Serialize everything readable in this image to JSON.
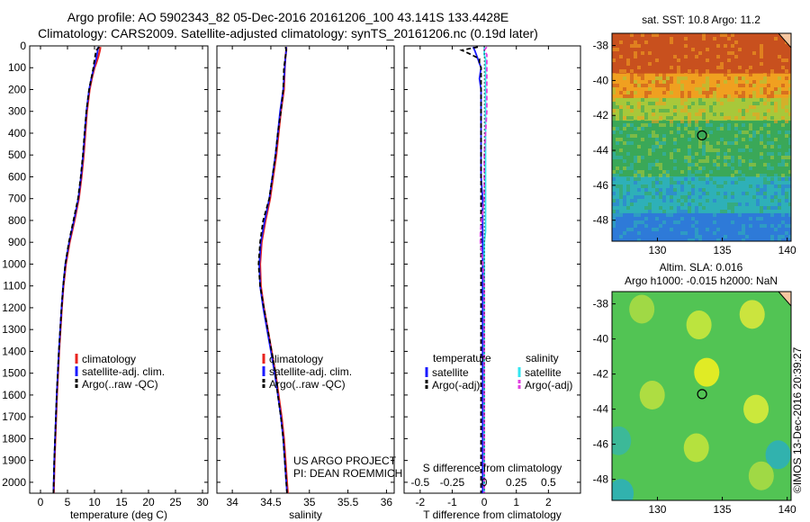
{
  "titles": {
    "line1": "Argo profile: AO 5902343_82 05-Dec-2016 20161206_100 43.141S 133.4428E",
    "line2": "Climatology: CARS2009. Satellite-adjusted climatology: synTS_20161206.nc (0.19d later)"
  },
  "stamp": "©IMOS 13-Dec-2016 20:39:27",
  "credit": {
    "line1": "US ARGO PROJECT",
    "line2": "PI: DEAN ROEMMICH"
  },
  "colors": {
    "climatology": "#e8231e",
    "satellite": "#1a1aff",
    "argo": "#000000",
    "sal_satellite": "#33e6f0",
    "sal_argo": "#e040e0"
  },
  "chart_data": [
    {
      "type": "line",
      "panel": "temperature",
      "xlabel": "temperature (deg C)",
      "xlim": [
        -2,
        31
      ],
      "ylim": [
        2050,
        0
      ],
      "y_reversed": true,
      "xticks": [
        0,
        5,
        10,
        15,
        20,
        25,
        30
      ],
      "yticks": [
        0,
        100,
        200,
        300,
        400,
        500,
        600,
        700,
        800,
        900,
        1000,
        1100,
        1200,
        1300,
        1400,
        1500,
        1600,
        1700,
        1800,
        1900,
        2000
      ],
      "legend_position": "lower-center",
      "legend": [
        "climatology",
        "satellite-adj. clim.",
        "Argo(..raw -QC)"
      ],
      "y": [
        5,
        20,
        50,
        80,
        100,
        150,
        200,
        300,
        400,
        500,
        600,
        700,
        800,
        900,
        1000,
        1100,
        1200,
        1300,
        1400,
        1500,
        1600,
        1700,
        1800,
        1900,
        2000,
        2050
      ],
      "series": [
        {
          "name": "climatology",
          "values": [
            11.1,
            11.0,
            10.7,
            10.3,
            10.0,
            9.5,
            9.1,
            8.6,
            8.3,
            8.0,
            7.6,
            7.1,
            6.3,
            5.4,
            4.7,
            4.25,
            3.95,
            3.7,
            3.45,
            3.25,
            3.05,
            2.9,
            2.75,
            2.6,
            2.5,
            2.45
          ]
        },
        {
          "name": "satellite-adj. clim.",
          "values": [
            10.7,
            10.6,
            10.4,
            10.1,
            9.9,
            9.4,
            9.0,
            8.5,
            8.2,
            7.9,
            7.5,
            7.0,
            6.2,
            5.3,
            4.6,
            4.2,
            3.9,
            3.65,
            3.4,
            3.2,
            3.0,
            2.85,
            2.7,
            2.55,
            2.45,
            2.4
          ]
        },
        {
          "name": "Argo(..raw -QC)",
          "values": [
            10.9,
            10.3,
            10.1,
            9.9,
            9.8,
            9.4,
            9.0,
            8.5,
            8.15,
            7.85,
            7.45,
            6.95,
            6.1,
            5.25,
            4.6,
            4.2,
            3.9,
            3.65,
            3.4,
            3.2,
            3.0,
            2.85,
            2.7,
            2.55,
            2.45,
            2.4
          ]
        }
      ]
    },
    {
      "type": "line",
      "panel": "salinity",
      "xlabel": "salinity",
      "xlim": [
        33.8,
        36.1
      ],
      "ylim": [
        2050,
        0
      ],
      "y_reversed": true,
      "xticks": [
        34,
        34.5,
        35,
        35.5,
        36
      ],
      "legend_position": "lower-center",
      "legend": [
        "climatology",
        "satellite-adj. clim.",
        "Argo(..raw -QC)"
      ],
      "y": [
        5,
        20,
        50,
        100,
        200,
        300,
        400,
        500,
        600,
        700,
        800,
        900,
        1000,
        1100,
        1200,
        1300,
        1400,
        1500,
        1600,
        1700,
        1800,
        1900,
        2000,
        2050
      ],
      "series": [
        {
          "name": "climatology",
          "values": [
            34.7,
            34.7,
            34.69,
            34.68,
            34.67,
            34.63,
            34.6,
            34.57,
            34.53,
            34.49,
            34.43,
            34.38,
            34.36,
            34.37,
            34.41,
            34.46,
            34.51,
            34.56,
            34.6,
            34.64,
            34.67,
            34.69,
            34.71,
            34.72
          ]
        },
        {
          "name": "satellite-adj. clim.",
          "values": [
            34.7,
            34.7,
            34.69,
            34.68,
            34.66,
            34.62,
            34.59,
            34.56,
            34.52,
            34.48,
            34.42,
            34.37,
            34.35,
            34.36,
            34.4,
            34.45,
            34.5,
            34.55,
            34.59,
            34.63,
            34.66,
            34.68,
            34.7,
            34.71
          ]
        },
        {
          "name": "Argo(..raw -QC)",
          "values": [
            34.69,
            34.7,
            34.69,
            34.67,
            34.66,
            34.63,
            34.59,
            34.56,
            34.52,
            34.48,
            34.4,
            34.36,
            34.34,
            34.36,
            34.41,
            34.46,
            34.51,
            34.56,
            34.59,
            34.63,
            34.66,
            34.68,
            34.7,
            34.71
          ]
        }
      ]
    },
    {
      "type": "line",
      "panel": "difference",
      "xlabel": "T difference from climatology",
      "top_label": "S difference from climatology",
      "xlim": [
        -2.5,
        3.0
      ],
      "ylim": [
        2050,
        0
      ],
      "y_reversed": true,
      "xticks": [
        -2,
        -1,
        0,
        1,
        2
      ],
      "top_ticks": [
        "-0.5",
        "-0.25",
        "0",
        "0.25",
        "0.5"
      ],
      "top_ticks_at_t": [
        -2,
        -1,
        0,
        1,
        2
      ],
      "legend_position": "lower-center",
      "legend_headers": [
        "temperature",
        "salinity"
      ],
      "legend": [
        "satellite",
        "Argo(-adj)",
        "satellite",
        "Argo(-adj)"
      ],
      "y": [
        5,
        20,
        40,
        60,
        80,
        100,
        150,
        200,
        300,
        400,
        500,
        600,
        700,
        800,
        850,
        900,
        950,
        1000,
        1100,
        1200,
        1300,
        1400,
        1500,
        1600,
        1700,
        1800,
        1900,
        2000,
        2050
      ],
      "series": [
        {
          "name": "satellite",
          "values": [
            -0.35,
            -0.3,
            -0.25,
            -0.2,
            -0.15,
            -0.1,
            -0.15,
            -0.1,
            -0.1,
            -0.1,
            -0.1,
            -0.1,
            -0.05,
            -0.05,
            -0.05,
            -0.05,
            -0.05,
            -0.05,
            -0.05,
            -0.05,
            -0.05,
            -0.05,
            -0.05,
            -0.05,
            -0.05,
            -0.05,
            -0.05,
            -0.05,
            -0.05
          ]
        },
        {
          "name": "Argo(-adj)",
          "values": [
            -0.2,
            -0.7,
            -0.4,
            -0.15,
            -0.15,
            -0.1,
            -0.1,
            -0.1,
            -0.1,
            -0.1,
            -0.1,
            -0.1,
            -0.1,
            -0.1,
            -0.1,
            -0.1,
            -0.1,
            -0.1,
            -0.1,
            -0.1,
            -0.1,
            -0.1,
            -0.1,
            -0.1,
            -0.1,
            -0.1,
            -0.1,
            -0.1,
            -0.1
          ]
        },
        {
          "name": "satellite",
          "values": [
            0.0,
            0.0,
            0.0,
            0.01,
            0.01,
            0.01,
            0.01,
            0.01,
            0.01,
            0.01,
            0.01,
            0.01,
            0.01,
            0.01,
            0.01,
            0.0,
            0.0,
            0.0,
            0.0,
            0.0,
            0.0,
            0.0,
            0.0,
            0.0,
            0.0,
            0.0,
            0.0,
            0.0,
            0.0
          ]
        },
        {
          "name": "Argo(-adj)",
          "values": [
            0.02,
            0.0,
            0.02,
            0.02,
            0.02,
            0.02,
            0.02,
            0.02,
            0.02,
            0.01,
            0.0,
            0.0,
            0.0,
            -0.02,
            -0.03,
            -0.03,
            -0.02,
            -0.01,
            0.0,
            0.0,
            0.0,
            0.0,
            0.0,
            0.0,
            0.0,
            0.0,
            0.0,
            0.0,
            0.0
          ]
        }
      ]
    },
    {
      "type": "heatmap",
      "panel": "sst-map",
      "title": "sat. SST: 10.8 Argo: 11.2",
      "xlim": [
        126.5,
        140.3
      ],
      "ylim": [
        -49.2,
        -37.3
      ],
      "xticks": [
        130,
        135,
        140
      ],
      "yticks": [
        -38,
        -40,
        -42,
        -44,
        -46,
        -48
      ],
      "marker": {
        "lon": 133.44,
        "lat": -43.14
      },
      "color_bands": [
        {
          "lat_from": -37.3,
          "lat_to": -39.6,
          "color": "#c8501e"
        },
        {
          "lat_from": -39.6,
          "lat_to": -41.0,
          "color": "#f0a020"
        },
        {
          "lat_from": -41.0,
          "lat_to": -42.3,
          "color": "#a8c83a"
        },
        {
          "lat_from": -42.3,
          "lat_to": -45.5,
          "color": "#3aa858"
        },
        {
          "lat_from": -45.5,
          "lat_to": -47.6,
          "color": "#2eb0b8"
        },
        {
          "lat_from": -47.6,
          "lat_to": -49.2,
          "color": "#2e7ad8"
        }
      ]
    },
    {
      "type": "heatmap",
      "panel": "sla-map",
      "title": "Altim. SLA: 0.016",
      "subtitle": "Argo h1000: -0.015 h2000: NaN",
      "xlim": [
        126.5,
        140.3
      ],
      "ylim": [
        -49.2,
        -37.3
      ],
      "xticks": [
        130,
        135,
        140
      ],
      "yticks": [
        -38,
        -40,
        -42,
        -44,
        -46,
        -48
      ],
      "marker": {
        "lon": 133.44,
        "lat": -43.14
      },
      "background_color": "#52c454",
      "blobs": [
        {
          "lon": 133.8,
          "lat": -41.9,
          "color": "#f0f020"
        },
        {
          "lon": 133.2,
          "lat": -39.2,
          "color": "#c8e83c"
        },
        {
          "lon": 137.3,
          "lat": -38.6,
          "color": "#d8e83c"
        },
        {
          "lon": 137.6,
          "lat": -44.0,
          "color": "#d8ec3a"
        },
        {
          "lon": 129.6,
          "lat": -43.2,
          "color": "#b8e040"
        },
        {
          "lon": 133.0,
          "lat": -46.2,
          "color": "#c0e43c"
        },
        {
          "lon": 128.8,
          "lat": -38.3,
          "color": "#a8dc44"
        },
        {
          "lon": 139.3,
          "lat": -46.6,
          "color": "#2eb0b8"
        },
        {
          "lon": 127.2,
          "lat": -48.8,
          "color": "#2eb0b8"
        },
        {
          "lon": 127.0,
          "lat": -45.8,
          "color": "#3ab8a0"
        },
        {
          "lon": 138.0,
          "lat": -47.8,
          "color": "#a8dc44"
        }
      ]
    }
  ]
}
